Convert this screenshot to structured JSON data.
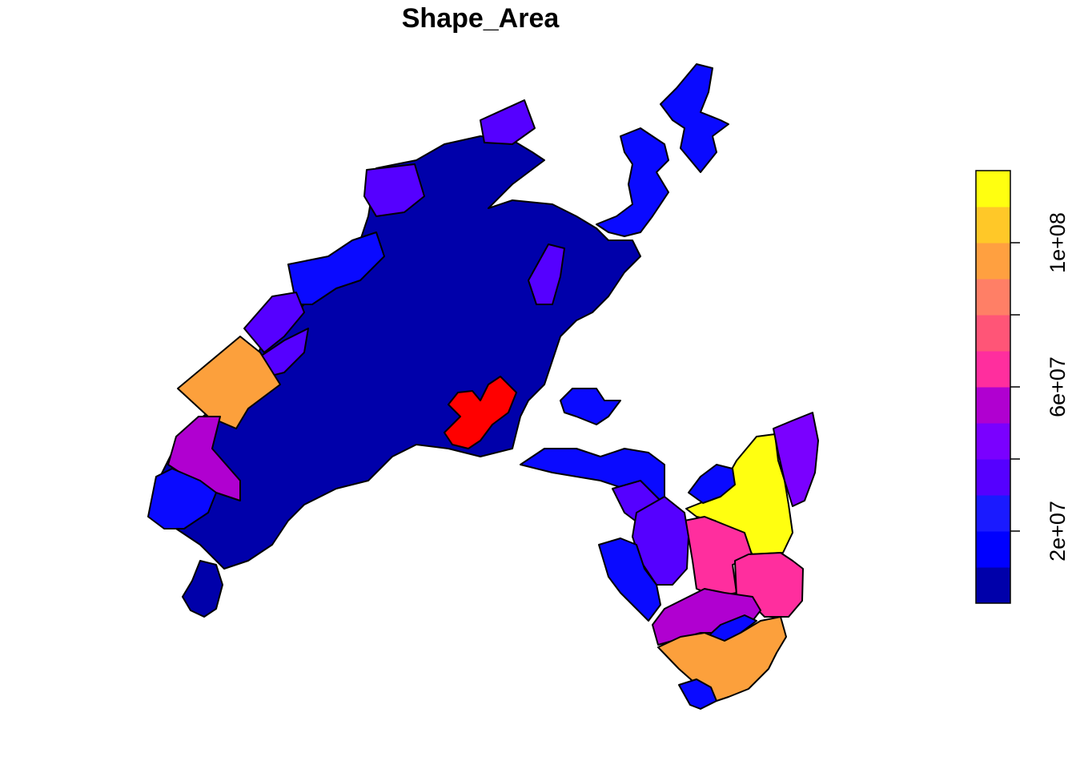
{
  "title": "Shape_Area",
  "legend": {
    "tick_labels": [
      "2e+07",
      "6e+07",
      "1e+08"
    ],
    "tick_values": [
      20000000,
      60000000,
      100000000
    ],
    "range": [
      0,
      120000000
    ],
    "colors": [
      "#0000AA",
      "#0000FF",
      "#1A1AFF",
      "#5500FF",
      "#7A00FF",
      "#B000D0",
      "#FF2E9E",
      "#FF5577",
      "#FF7F66",
      "#FFA040",
      "#FFC828",
      "#FFFF10"
    ],
    "position": "right"
  },
  "chart_data": {
    "type": "choropleth",
    "title": "Shape_Area",
    "variable": "Shape_Area",
    "legend_ticks": [
      20000000,
      60000000,
      100000000
    ],
    "value_range": [
      0,
      120000000
    ],
    "legend_position": "right"
  },
  "colors": {
    "dark_blue": "#0000AA",
    "blue": "#0A0AFF",
    "violet": "#5500FF",
    "purple": "#7A00FF",
    "magenta": "#B000D0",
    "pink": "#FF2E9E",
    "orange": "#FCA03C",
    "yellow": "#FFFF10",
    "red": "#FF0000"
  }
}
